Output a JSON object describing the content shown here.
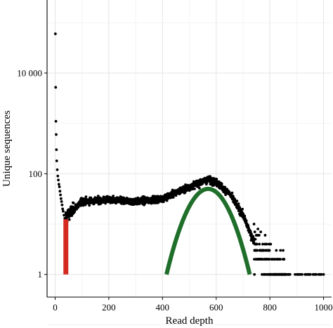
{
  "chart_data": {
    "type": "scatter",
    "title": "",
    "xlabel": "Read depth",
    "ylabel": "Unique sequences",
    "xlim": [
      -30,
      1030
    ],
    "ylim_log10": [
      -0.45,
      5.45
    ],
    "y_scale": "log10",
    "grid": true,
    "x_ticks": [
      0,
      200,
      400,
      600,
      800,
      1000
    ],
    "x_tick_labels": [
      "0",
      "200",
      "400",
      "600",
      "800",
      "1000"
    ],
    "y_ticks": [
      1,
      100,
      10000
    ],
    "y_tick_labels": [
      "1",
      "100",
      "10 000"
    ],
    "series": [
      {
        "type": "scatter",
        "color": "#000000",
        "points_low_depth": [
          [
            1,
            60000
          ],
          [
            2,
            5200
          ],
          [
            3,
            1100
          ],
          [
            4,
            600
          ],
          [
            5,
            300
          ],
          [
            6,
            180
          ],
          [
            8,
            120
          ],
          [
            10,
            90
          ],
          [
            12,
            75
          ],
          [
            14,
            62
          ],
          [
            16,
            55
          ],
          [
            18,
            45
          ],
          [
            20,
            38
          ],
          [
            22,
            32
          ],
          [
            24,
            28
          ],
          [
            26,
            24
          ],
          [
            28,
            20
          ],
          [
            30,
            18
          ],
          [
            33,
            15
          ],
          [
            36,
            13
          ],
          [
            40,
            12
          ]
        ],
        "profile_note": "plateau ~30 from 40-400, hump peak ~75 near 570, decay to 1 by ~850, sporadic singletons up to 1000",
        "profile": [
          [
            40,
            14
          ],
          [
            100,
            28
          ],
          [
            200,
            30
          ],
          [
            300,
            28
          ],
          [
            400,
            32
          ],
          [
            450,
            42
          ],
          [
            500,
            55
          ],
          [
            550,
            70
          ],
          [
            570,
            76
          ],
          [
            600,
            68
          ],
          [
            650,
            40
          ],
          [
            700,
            15
          ],
          [
            730,
            6
          ],
          [
            760,
            3
          ],
          [
            800,
            1.6
          ],
          [
            850,
            1
          ]
        ]
      },
      {
        "type": "threshold_bar",
        "color": "#d42a20",
        "x": 40,
        "y_range": [
          1,
          12.5
        ]
      },
      {
        "type": "fitted_curve",
        "color": "#1f6e2a",
        "x_range": [
          415,
          725
        ],
        "peak_x": 570,
        "peak_y": 50,
        "baseline_y": 1
      }
    ]
  }
}
